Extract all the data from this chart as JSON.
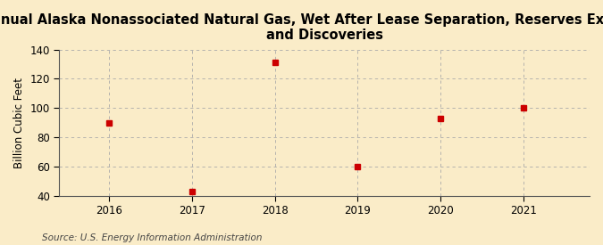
{
  "title": "Annual Alaska Nonassociated Natural Gas, Wet After Lease Separation, Reserves Extensions\nand Discoveries",
  "ylabel": "Billion Cubic Feet",
  "source": "Source: U.S. Energy Information Administration",
  "x": [
    2016,
    2017,
    2018,
    2019,
    2020,
    2021
  ],
  "y": [
    90,
    43,
    131,
    60,
    93,
    100
  ],
  "xlim": [
    2015.4,
    2021.8
  ],
  "ylim": [
    40,
    140
  ],
  "yticks": [
    40,
    60,
    80,
    100,
    120,
    140
  ],
  "xticks": [
    2016,
    2017,
    2018,
    2019,
    2020,
    2021
  ],
  "marker_color": "#cc0000",
  "marker_style": "s",
  "marker_size": 4,
  "background_color": "#faecc8",
  "grid_color": "#aaaaaa",
  "title_fontsize": 10.5,
  "label_fontsize": 8.5,
  "tick_fontsize": 8.5,
  "source_fontsize": 7.5
}
